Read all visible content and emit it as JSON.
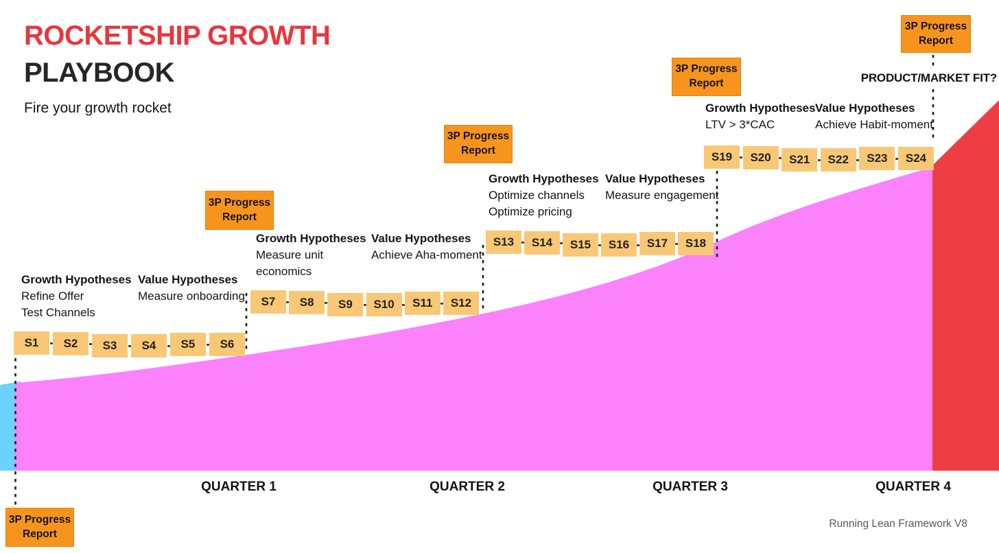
{
  "header": {
    "title_line1": "ROCKETSHIP GROWTH",
    "title_line2": "PLAYBOOK",
    "subtitle": "Fire your growth rocket"
  },
  "progress_report_label": "3P Progress Report",
  "product_market_fit_label": "PRODUCT/MARKET FIT?",
  "footer_credit": "Running Lean Framework V8",
  "quarters": [
    "QUARTER 1",
    "QUARTER 2",
    "QUARTER 3",
    "QUARTER 4"
  ],
  "sprint_groups": [
    {
      "growth": {
        "title": "Growth Hypotheses",
        "lines": [
          "Refine Offer",
          "Test Channels"
        ]
      },
      "value": {
        "title": "Value Hypotheses",
        "lines": [
          "Measure onboarding"
        ]
      },
      "sprints": [
        "S1",
        "S2",
        "S3",
        "S4",
        "S5",
        "S6"
      ]
    },
    {
      "growth": {
        "title": "Growth Hypotheses",
        "lines": [
          "Measure unit",
          "economics"
        ]
      },
      "value": {
        "title": "Value Hypotheses",
        "lines": [
          "Achieve Aha-moment"
        ]
      },
      "sprints": [
        "S7",
        "S8",
        "S9",
        "S10",
        "S11",
        "S12"
      ]
    },
    {
      "growth": {
        "title": "Growth Hypotheses",
        "lines": [
          "Optimize channels",
          "Optimize pricing"
        ]
      },
      "value": {
        "title": "Value Hypotheses",
        "lines": [
          "Measure engagement"
        ]
      },
      "sprints": [
        "S13",
        "S14",
        "S15",
        "S16",
        "S17",
        "S18"
      ]
    },
    {
      "growth": {
        "title": "Growth Hypotheses",
        "lines": [
          "LTV > 3*CAC"
        ]
      },
      "value": {
        "title": "Value Hypotheses",
        "lines": [
          "Achieve Habit-moment"
        ]
      },
      "sprints": [
        "S19",
        "S20",
        "S21",
        "S22",
        "S23",
        "S24"
      ]
    }
  ],
  "colors": {
    "title_red": "#E8363D",
    "chart_red": "#EE3E44",
    "report_orange": "#F7941E",
    "sprint_tan": "#F9C876",
    "growth_magenta": "#FC82FC",
    "runway_blue": "#6BD2FC",
    "ink": "#1D1D1B",
    "footer_gray": "#58595B"
  }
}
